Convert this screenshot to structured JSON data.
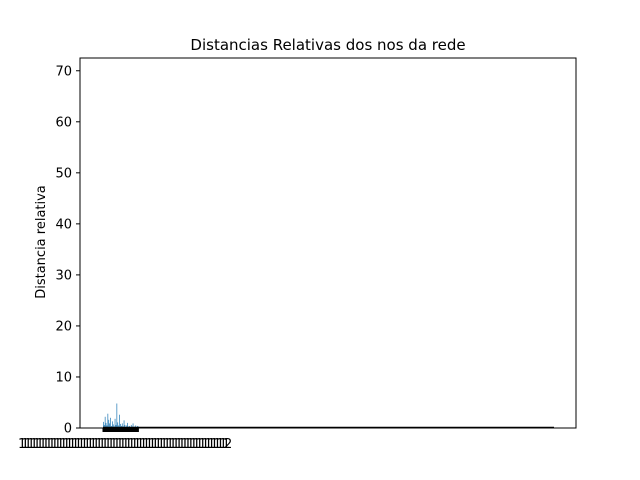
{
  "chart_data": {
    "type": "bar",
    "title": "Distancias Relativas dos nos da rede",
    "xlabel": "",
    "ylabel": "Distancia relativa",
    "ylim": [
      0,
      72.5
    ],
    "yticks": [
      0,
      10,
      20,
      30,
      40,
      50,
      60,
      70
    ],
    "grid": false,
    "bar_color": "#1f77b4",
    "spine_color": "#000000",
    "x_tick_labels_overlapping_text": "1",
    "x_tick_labels_trailing_text": "2",
    "values": [
      1.2,
      0.6,
      2.2,
      1.0,
      0.5,
      2.8,
      1.6,
      0.9,
      2.0,
      0.4,
      1.3,
      0.7,
      0.3,
      1.8,
      0.6,
      4.8,
      1.1,
      0.5,
      2.6,
      0.8,
      0.4,
      0.9,
      0.3,
      1.5,
      0.6,
      0.2,
      0.5,
      1.0,
      0.3,
      0.4,
      0.2,
      0.6,
      0.3,
      0.9,
      0.2,
      0.3,
      0.5,
      0.2,
      0.4,
      0.3
    ]
  }
}
